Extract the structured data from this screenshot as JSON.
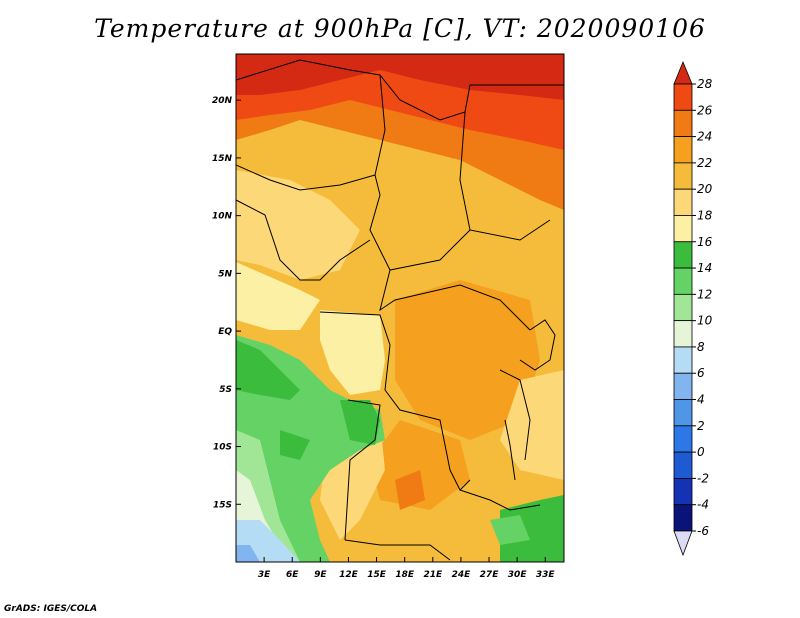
{
  "title": "Temperature at 900hPa [C], VT: 2020090106",
  "credit": "GrADS: IGES/COLA",
  "map": {
    "lon_range": [
      0,
      35
    ],
    "lat_range": [
      -20,
      24
    ],
    "lon_ticks": [
      "3E",
      "6E",
      "9E",
      "12E",
      "15E",
      "18E",
      "21E",
      "24E",
      "27E",
      "30E",
      "33E"
    ],
    "lon_tick_values": [
      3,
      6,
      9,
      12,
      15,
      18,
      21,
      24,
      27,
      30,
      33
    ],
    "lat_ticks": [
      "20N",
      "15N",
      "10N",
      "5N",
      "EQ",
      "5S",
      "10S",
      "15S"
    ],
    "lat_tick_values": [
      20,
      15,
      10,
      5,
      0,
      -5,
      -10,
      -15
    ]
  },
  "colorbar": {
    "labels": [
      "28",
      "26",
      "24",
      "22",
      "20",
      "18",
      "16",
      "14",
      "12",
      "10",
      "8",
      "6",
      "4",
      "2",
      "0",
      "-2",
      "-4",
      "-6"
    ],
    "colors": [
      "#d42a14",
      "#f04a14",
      "#f07a14",
      "#f5a01e",
      "#f5bc3c",
      "#fcd878",
      "#fcf0a4",
      "#3cbc3c",
      "#64d264",
      "#a0e696",
      "#e6f5d8",
      "#b4dcf5",
      "#82b4f0",
      "#5096e6",
      "#2d78e6",
      "#1e5ad2",
      "#1432b4",
      "#0a1478",
      "#dcdcf5"
    ]
  },
  "icons": {
    "colorbar_top_arrow": "triangle-up-icon",
    "colorbar_bottom_arrow": "triangle-down-icon"
  }
}
